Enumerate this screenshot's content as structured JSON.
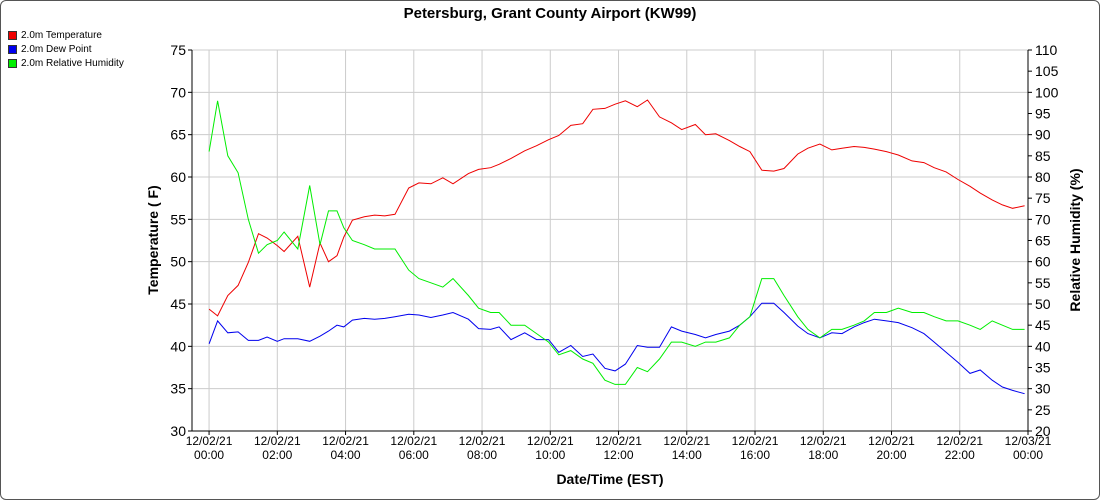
{
  "chart_data": {
    "type": "line",
    "title": "Petersburg, Grant County Airport (KW99)",
    "xlabel": "Date/Time (EST)",
    "ylabel_left": "Temperature ( F)",
    "ylabel_right": "Relative Humidity (%)",
    "ylim_left": [
      30,
      75
    ],
    "ylim_right": [
      20,
      110
    ],
    "yticks_left": [
      "30",
      "35",
      "40",
      "45",
      "50",
      "55",
      "60",
      "65",
      "70",
      "75"
    ],
    "yticks_right": [
      "20",
      "25",
      "30",
      "35",
      "40",
      "45",
      "50",
      "55",
      "60",
      "65",
      "70",
      "75",
      "80",
      "85",
      "90",
      "95",
      "100",
      "105",
      "110"
    ],
    "xlim_hours": [
      -0.5,
      24
    ],
    "xticks": [
      {
        "date": "12/02/21",
        "time": "00:00"
      },
      {
        "date": "12/02/21",
        "time": "02:00"
      },
      {
        "date": "12/02/21",
        "time": "04:00"
      },
      {
        "date": "12/02/21",
        "time": "06:00"
      },
      {
        "date": "12/02/21",
        "time": "08:00"
      },
      {
        "date": "12/02/21",
        "time": "10:00"
      },
      {
        "date": "12/02/21",
        "time": "12:00"
      },
      {
        "date": "12/02/21",
        "time": "14:00"
      },
      {
        "date": "12/02/21",
        "time": "16:00"
      },
      {
        "date": "12/02/21",
        "time": "18:00"
      },
      {
        "date": "12/02/21",
        "time": "20:00"
      },
      {
        "date": "12/02/21",
        "time": "22:00"
      },
      {
        "date": "12/03/21",
        "time": "00:00"
      }
    ],
    "grid": true,
    "legend_position": "top-left",
    "x": [
      0,
      0.25,
      0.55,
      0.85,
      1.15,
      1.45,
      1.7,
      2.0,
      2.2,
      2.6,
      2.95,
      3.25,
      3.5,
      3.75,
      3.95,
      4.2,
      4.55,
      4.85,
      5.15,
      5.45,
      5.85,
      6.15,
      6.5,
      6.85,
      7.15,
      7.6,
      7.9,
      8.25,
      8.5,
      8.85,
      9.25,
      9.6,
      9.95,
      10.25,
      10.6,
      10.95,
      11.25,
      11.6,
      11.9,
      12.2,
      12.55,
      12.85,
      13.2,
      13.55,
      13.85,
      14.25,
      14.55,
      14.85,
      15.25,
      15.55,
      15.85,
      16.2,
      16.55,
      16.85,
      17.25,
      17.55,
      17.9,
      18.25,
      18.55,
      18.9,
      19.2,
      19.5,
      19.85,
      20.2,
      20.6,
      20.95,
      21.25,
      21.6,
      21.95,
      22.3,
      22.6,
      22.95,
      23.25,
      23.55,
      23.9
    ],
    "series": [
      {
        "name": "2.0m Temperature",
        "color": "#ee0000",
        "axis": "left",
        "values": [
          44.4,
          43.6,
          46.0,
          47.2,
          49.9,
          53.3,
          52.8,
          51.9,
          51.2,
          53.0,
          47.0,
          52.2,
          50.0,
          50.7,
          52.9,
          54.9,
          55.3,
          55.5,
          55.4,
          55.6,
          58.7,
          59.3,
          59.2,
          59.9,
          59.2,
          60.4,
          60.9,
          61.1,
          61.5,
          62.2,
          63.1,
          63.7,
          64.4,
          64.9,
          66.1,
          66.3,
          68.0,
          68.1,
          68.6,
          69.0,
          68.3,
          69.1,
          67.1,
          66.4,
          65.6,
          66.2,
          65.0,
          65.1,
          64.3,
          63.6,
          63.0,
          60.8,
          60.7,
          61.0,
          62.7,
          63.4,
          63.9,
          63.2,
          63.4,
          63.6,
          63.5,
          63.3,
          63.0,
          62.6,
          61.9,
          61.7,
          61.1,
          60.6,
          59.7,
          58.9,
          58.1,
          57.3,
          56.7,
          56.3,
          56.6
        ]
      },
      {
        "name": "2.0m Dew Point",
        "color": "#0000ee",
        "axis": "left",
        "values": [
          40.3,
          43.0,
          41.6,
          41.7,
          40.7,
          40.7,
          41.1,
          40.6,
          40.9,
          40.9,
          40.6,
          41.2,
          41.8,
          42.5,
          42.3,
          43.1,
          43.3,
          43.2,
          43.3,
          43.5,
          43.8,
          43.7,
          43.4,
          43.7,
          44.0,
          43.2,
          42.1,
          42.0,
          42.3,
          40.8,
          41.6,
          40.8,
          40.8,
          39.3,
          40.1,
          38.8,
          39.1,
          37.4,
          37.1,
          37.9,
          40.1,
          39.9,
          39.9,
          42.3,
          41.8,
          41.4,
          41.0,
          41.4,
          41.8,
          42.5,
          43.5,
          45.1,
          45.1,
          44.0,
          42.4,
          41.5,
          41.0,
          41.6,
          41.5,
          42.3,
          42.8,
          43.2,
          43.0,
          42.8,
          42.2,
          41.5,
          40.5,
          39.3,
          38.1,
          36.8,
          37.2,
          36.0,
          35.2,
          34.8,
          34.4
        ]
      },
      {
        "name": "2.0m Relative Humidity",
        "color": "#00ee00",
        "axis": "right",
        "values": [
          86,
          98,
          85,
          81,
          70,
          62,
          64,
          65,
          67,
          63,
          78,
          64,
          72,
          72,
          68,
          65,
          64,
          63,
          63,
          63,
          58,
          56,
          55,
          54,
          56,
          52,
          49,
          48,
          48,
          45,
          45,
          43,
          41,
          38,
          39,
          37,
          36,
          32,
          31,
          31,
          35,
          34,
          37,
          41,
          41,
          40,
          41,
          41,
          42,
          45,
          47,
          56,
          56,
          52,
          47,
          44,
          42,
          44,
          44,
          45,
          46,
          48,
          48,
          49,
          48,
          48,
          47,
          46,
          46,
          45,
          44,
          46,
          45,
          44,
          44
        ]
      }
    ]
  }
}
